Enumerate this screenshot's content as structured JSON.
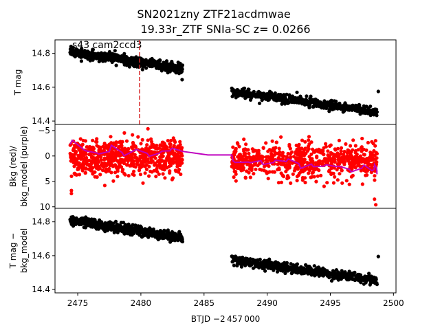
{
  "chart_data": {
    "type": "scatter",
    "title_line1": "SN2021zny  ZTF21acdmwae",
    "title_line2": "19.33r_ZTF SNIa-SC z= 0.0266",
    "xlabel": "BTJD −2 457 000",
    "xlim": [
      2473.2,
      2500.2
    ],
    "xticks": [
      2475,
      2480,
      2485,
      2490,
      2495,
      2500
    ],
    "panels": [
      {
        "id": "top",
        "ylabel": "T mag",
        "ylim": [
          14.88,
          14.38
        ],
        "yticks": [
          14.4,
          14.6,
          14.8
        ],
        "annotation": "s43 cam2ccd3",
        "marker_line_x": 2479.9,
        "marker_line_color": "#d62728",
        "series": [
          {
            "segment": "sector-part-1",
            "color": "#000000",
            "x_range": [
              2474.4,
              2483.3
            ],
            "y_start": 14.81,
            "y_end": 14.71,
            "scatter": 0.04
          },
          {
            "segment": "sector-part-2",
            "color": "#000000",
            "x_range": [
              2487.2,
              2498.7
            ],
            "y_start": 14.575,
            "y_end": 14.455,
            "scatter": 0.04
          }
        ],
        "outliers": [
          {
            "x": 2498.8,
            "y": 14.575
          }
        ]
      },
      {
        "id": "middle",
        "ylabel_line1": "Bkg (red)/",
        "ylabel_line2": "bkg_model (purple)",
        "ylim": [
          -6.2,
          10.3
        ],
        "yticks": [
          -5,
          0,
          5,
          10
        ],
        "bkg_color": "#ff0000",
        "model_color": "#bf00bf",
        "bkg_segments": [
          {
            "x_range": [
              2474.4,
              2483.3
            ],
            "level": 0.2,
            "scatter": 1.7
          },
          {
            "x_range": [
              2487.2,
              2498.7
            ],
            "level": 0.9,
            "scatter": 1.7
          }
        ],
        "bkg_outliers": [
          {
            "x": 2474.5,
            "y": 7.4
          },
          {
            "x": 2474.5,
            "y": 6.8
          },
          {
            "x": 2498.6,
            "y": 9.6
          },
          {
            "x": 2498.5,
            "y": 8.5
          }
        ],
        "model_points": [
          {
            "x": 2474.4,
            "y": -2.3
          },
          {
            "x": 2475.5,
            "y": -1.2
          },
          {
            "x": 2476.5,
            "y": -0.6
          },
          {
            "x": 2477.5,
            "y": -0.9
          },
          {
            "x": 2478.5,
            "y": -0.7
          },
          {
            "x": 2479.5,
            "y": -1.1
          },
          {
            "x": 2480.5,
            "y": -0.5
          },
          {
            "x": 2481.5,
            "y": -0.6
          },
          {
            "x": 2482.3,
            "y": -1.0
          },
          {
            "x": 2483.3,
            "y": -0.9
          },
          {
            "x": 2485.3,
            "y": -0.2
          },
          {
            "x": 2487.2,
            "y": -0.2
          },
          {
            "x": 2487.3,
            "y": 1.0
          },
          {
            "x": 2488.5,
            "y": 1.2
          },
          {
            "x": 2489.5,
            "y": 0.9
          },
          {
            "x": 2490.5,
            "y": 1.3
          },
          {
            "x": 2491.5,
            "y": 1.1
          },
          {
            "x": 2492.5,
            "y": 1.5
          },
          {
            "x": 2493.5,
            "y": 1.6
          },
          {
            "x": 2494.5,
            "y": 2.0
          },
          {
            "x": 2495.5,
            "y": 2.1
          },
          {
            "x": 2496.5,
            "y": 2.6
          },
          {
            "x": 2497.5,
            "y": 2.4
          },
          {
            "x": 2498.3,
            "y": 2.9
          },
          {
            "x": 2498.5,
            "y": 1.7
          },
          {
            "x": 2498.7,
            "y": 3.6
          }
        ]
      },
      {
        "id": "bottom",
        "ylabel_line1": "T mag −",
        "ylabel_line2": "bkg_model",
        "ylim": [
          14.88,
          14.38
        ],
        "yticks": [
          14.4,
          14.6,
          14.8
        ],
        "series": [
          {
            "segment": "sector-part-1",
            "color": "#000000",
            "x_range": [
              2474.4,
              2483.3
            ],
            "y_start": 14.81,
            "y_end": 14.705,
            "scatter": 0.04
          },
          {
            "segment": "sector-part-2",
            "color": "#000000",
            "x_range": [
              2487.2,
              2498.7
            ],
            "y_start": 14.575,
            "y_end": 14.455,
            "scatter": 0.04
          }
        ],
        "outliers": [
          {
            "x": 2498.8,
            "y": 14.595
          }
        ]
      }
    ]
  }
}
